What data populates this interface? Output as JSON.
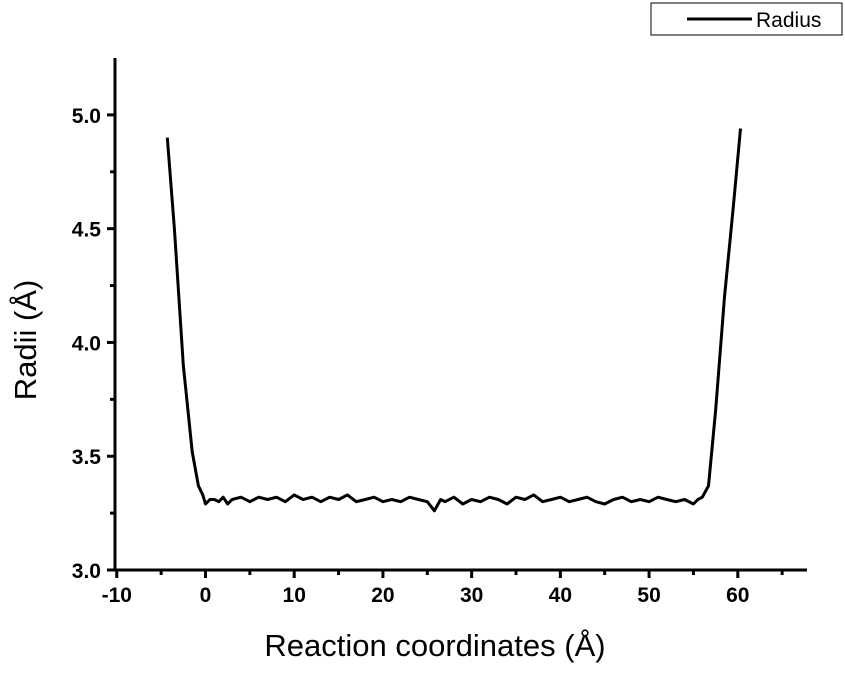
{
  "chart_data": {
    "type": "line",
    "title": "",
    "xlabel": "Reaction coordinates (Å)",
    "ylabel": "Radii (Å)",
    "xlim": [
      -10.2,
      67.8
    ],
    "ylim": [
      3.0,
      5.25
    ],
    "xticks": [
      -10,
      0,
      10,
      20,
      30,
      40,
      50,
      60
    ],
    "xtick_labels": [
      "-10",
      "0",
      "10",
      "20",
      "30",
      "40",
      "50",
      "60"
    ],
    "yticks": [
      3.0,
      3.5,
      4.0,
      4.5,
      5.0
    ],
    "ytick_labels": [
      "3.0",
      "3.5",
      "4.0",
      "4.5",
      "5.0"
    ],
    "grid": false,
    "legend_placement": "top-right",
    "series": [
      {
        "name": "Radius",
        "color": "#000000",
        "x": [
          -4.3,
          -3.5,
          -2.5,
          -1.5,
          -0.8,
          -0.3,
          0,
          0.5,
          1,
          1.5,
          2,
          2.5,
          3,
          4,
          5,
          6,
          7,
          8,
          9,
          10,
          11,
          12,
          13,
          14,
          15,
          16,
          17,
          18,
          19,
          20,
          21,
          22,
          23,
          24,
          25,
          25.8,
          26.5,
          27,
          28,
          29,
          30,
          31,
          32,
          33,
          34,
          35,
          36,
          37,
          38,
          39,
          40,
          41,
          42,
          43,
          44,
          45,
          46,
          47,
          48,
          49,
          50,
          51,
          52,
          53,
          54,
          55,
          55.5,
          56,
          56.7,
          57.5,
          58.5,
          59.5,
          60.3
        ],
        "y": [
          4.9,
          4.5,
          3.9,
          3.52,
          3.37,
          3.33,
          3.29,
          3.31,
          3.31,
          3.3,
          3.32,
          3.29,
          3.31,
          3.32,
          3.3,
          3.32,
          3.31,
          3.32,
          3.3,
          3.33,
          3.31,
          3.32,
          3.3,
          3.32,
          3.31,
          3.33,
          3.3,
          3.31,
          3.32,
          3.3,
          3.31,
          3.3,
          3.32,
          3.31,
          3.3,
          3.26,
          3.31,
          3.3,
          3.32,
          3.29,
          3.31,
          3.3,
          3.32,
          3.31,
          3.29,
          3.32,
          3.31,
          3.33,
          3.3,
          3.31,
          3.32,
          3.3,
          3.31,
          3.32,
          3.3,
          3.29,
          3.31,
          3.32,
          3.3,
          3.31,
          3.3,
          3.32,
          3.31,
          3.3,
          3.31,
          3.29,
          3.31,
          3.32,
          3.37,
          3.7,
          4.2,
          4.6,
          4.94
        ]
      }
    ]
  }
}
